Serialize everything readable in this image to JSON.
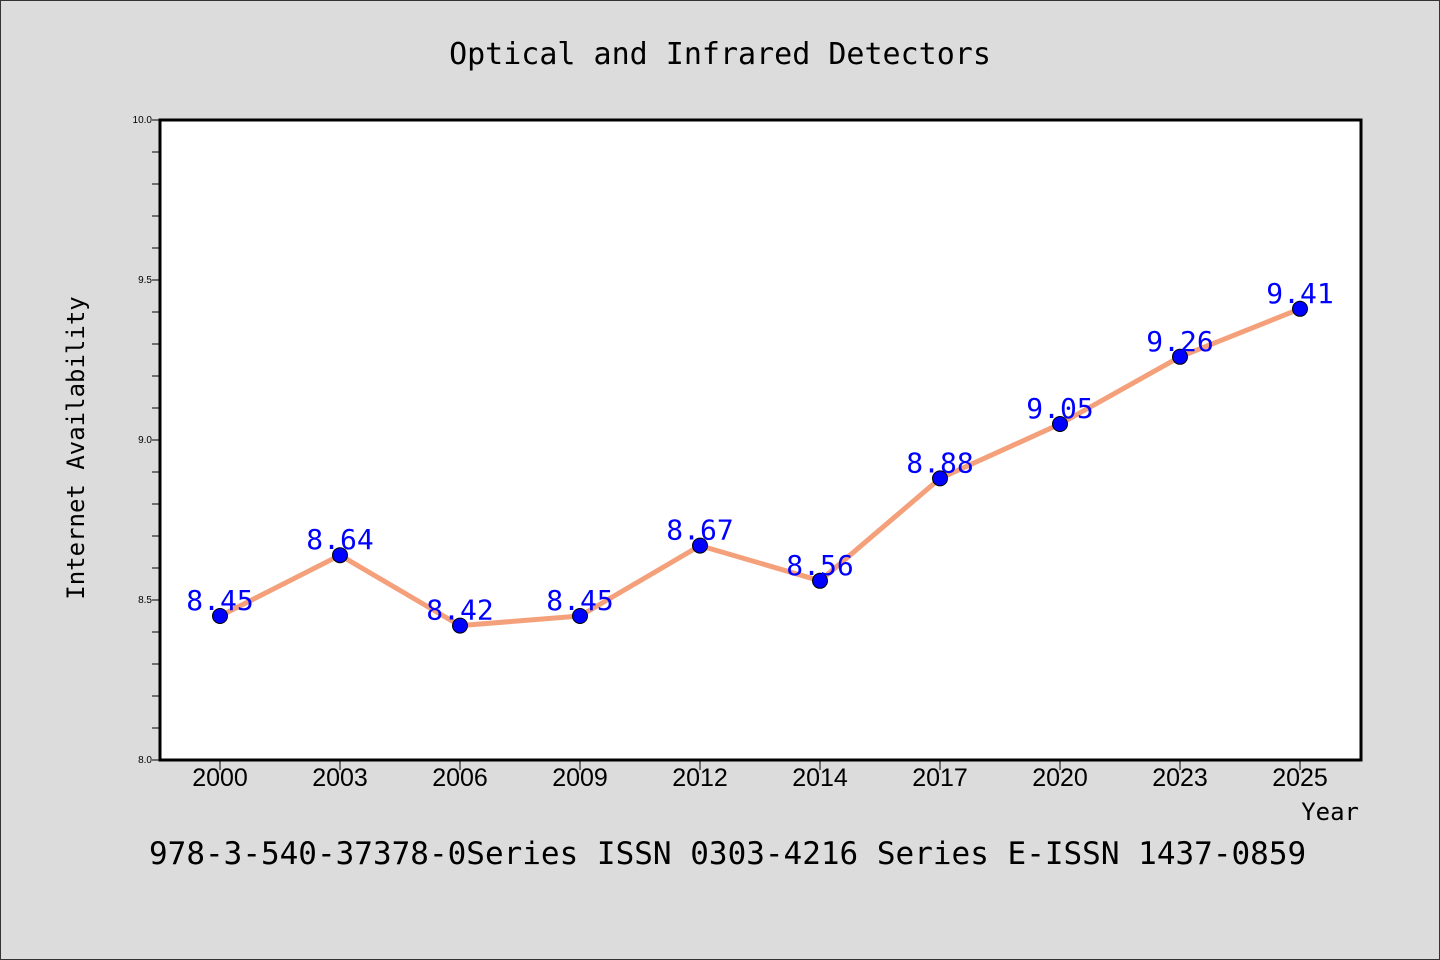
{
  "chart_data": {
    "type": "line",
    "title": "Optical and Infrared Detectors",
    "xlabel": "Year",
    "ylabel": "Internet Availability",
    "categories": [
      "2000",
      "2003",
      "2006",
      "2009",
      "2012",
      "2014",
      "2017",
      "2020",
      "2023",
      "2025"
    ],
    "series": [
      {
        "values": [
          8.45,
          8.64,
          8.42,
          8.45,
          8.67,
          8.56,
          8.88,
          9.05,
          9.26,
          9.41
        ],
        "line_color": "#f4a07a",
        "marker_color": "#0000ff"
      }
    ],
    "ylim": [
      8.0,
      10.0
    ],
    "y_ticks": [
      "8.0",
      "8.5",
      "9.0",
      "9.5",
      "10.0"
    ],
    "grid": false,
    "data_labels": true
  },
  "footer_text": "978-3-540-37378-0Series ISSN 0303-4216 Series E-ISSN 1437-0859",
  "colors": {
    "background": "#dcdcdc",
    "plot_background": "#ffffff",
    "label_color": "#0000ff"
  }
}
